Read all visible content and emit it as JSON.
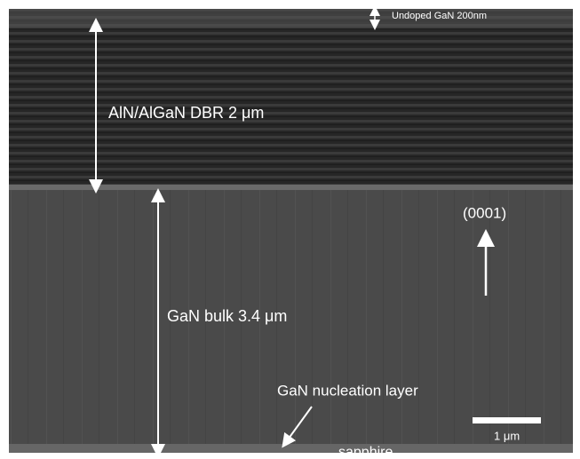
{
  "image": {
    "labels": {
      "undoped": "Undoped GaN 200nm",
      "dbr": "AlN/AlGaN DBR 2 μm",
      "bulk": "GaN bulk 3.4 μm",
      "direction": "(0001)",
      "nucleation": "GaN nucleation layer",
      "scale": "1 μm",
      "sapphire": "sapphire"
    }
  }
}
